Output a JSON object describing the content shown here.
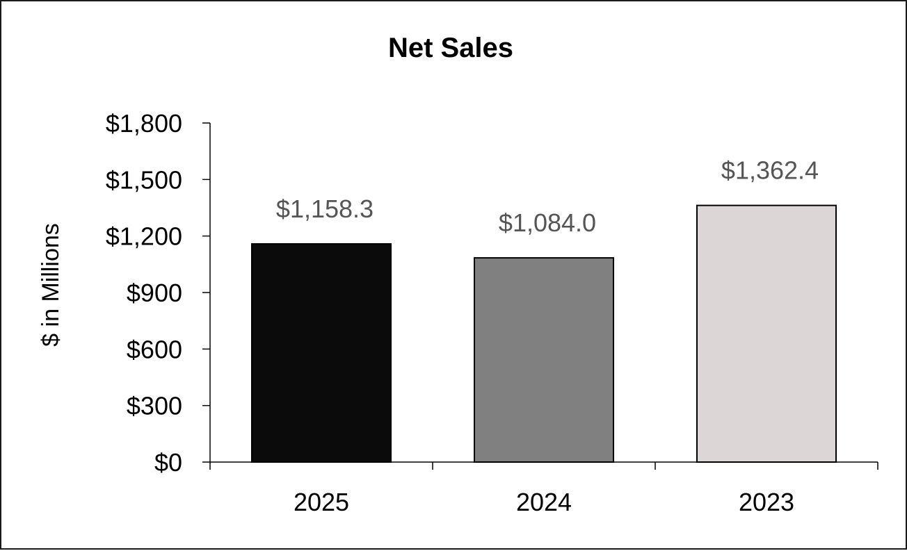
{
  "chart_data": {
    "type": "bar",
    "title": "Net Sales",
    "ylabel": "$ in Millions",
    "xlabel": "",
    "categories": [
      "2025",
      "2024",
      "2023"
    ],
    "values": [
      1158.3,
      1084.0,
      1362.4
    ],
    "value_labels": [
      "$1,158.3",
      "$1,084.0",
      "$1,362.4"
    ],
    "bar_colors": [
      "#0b0b0b",
      "#808080",
      "#dcd6d6"
    ],
    "ylim": [
      0,
      1800
    ],
    "yticks": [
      0,
      300,
      600,
      900,
      1200,
      1500,
      1800
    ],
    "ytick_labels": [
      "$0",
      "$300",
      "$600",
      "$900",
      "$1,200",
      "$1,500",
      "$1,800"
    ],
    "grid": false,
    "legend": "none"
  }
}
